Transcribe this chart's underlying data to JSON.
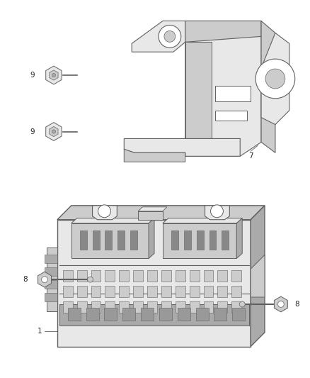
{
  "bg_color": "#ffffff",
  "lc": "#606060",
  "fc_light": "#e8e8e8",
  "fc_mid": "#cccccc",
  "fc_dark": "#aaaaaa",
  "fig_width": 4.38,
  "fig_height": 5.33,
  "dpi": 100
}
